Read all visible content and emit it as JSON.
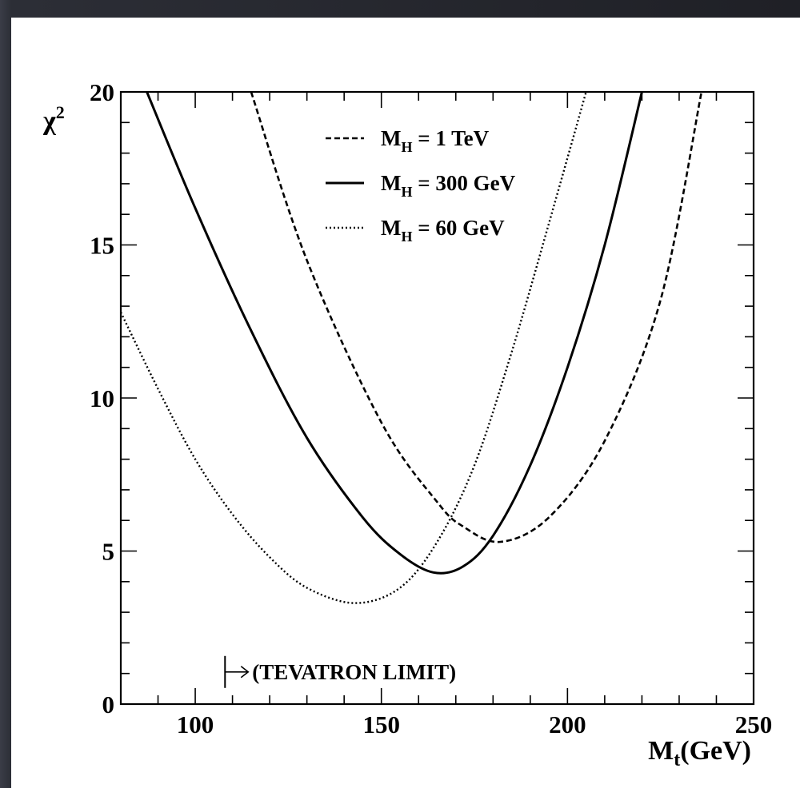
{
  "chart_data": {
    "type": "line",
    "xlabel": {
      "main": "M",
      "sub": "t",
      "rest": "(GeV)"
    },
    "ylabel": {
      "main": "χ",
      "sup": "2"
    },
    "xlim": [
      80,
      250
    ],
    "ylim": [
      0,
      20
    ],
    "x_ticks": [
      100,
      150,
      200,
      250
    ],
    "y_ticks": [
      0,
      5,
      10,
      15,
      20
    ],
    "series": [
      {
        "name": "M_H = 1 TeV",
        "label": {
          "main": "M",
          "sub": "H",
          "rest": " = 1 TeV"
        },
        "style": "dashed",
        "x": [
          115,
          130,
          150,
          165,
          172,
          182,
          195,
          210,
          225,
          236
        ],
        "y": [
          20,
          14.5,
          9.2,
          6.6,
          5.8,
          5.3,
          6.1,
          8.6,
          13.2,
          20
        ]
      },
      {
        "name": "M_H = 300 GeV",
        "label": {
          "main": "M",
          "sub": "H",
          "rest": " = 300 GeV"
        },
        "style": "solid",
        "x": [
          87,
          100,
          115,
          130,
          145,
          155,
          164,
          172,
          180,
          190,
          200,
          210,
          220
        ],
        "y": [
          20,
          16.2,
          12.2,
          8.7,
          6.1,
          4.9,
          4.3,
          4.5,
          5.5,
          7.8,
          11.0,
          15.0,
          20
        ]
      },
      {
        "name": "M_H = 60 GeV",
        "label": {
          "main": "M",
          "sub": "H",
          "rest": " = 60 GeV"
        },
        "style": "dotted",
        "x": [
          80,
          90,
          100,
          110,
          120,
          130,
          143,
          155,
          165,
          175,
          185,
          195,
          205
        ],
        "y": [
          12.8,
          10.3,
          8.0,
          6.2,
          4.8,
          3.8,
          3.3,
          3.8,
          5.3,
          7.8,
          11.5,
          15.7,
          20
        ]
      }
    ],
    "legend_placement": "top-center",
    "annotation": {
      "arrow": "|→",
      "text": "(TEVATRON LIMIT)",
      "x": 108,
      "y": 1.05
    },
    "grid": false
  }
}
